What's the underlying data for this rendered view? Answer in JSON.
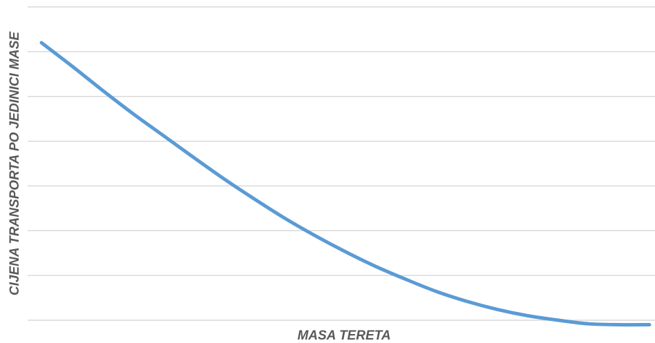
{
  "chart_data": {
    "type": "line",
    "title": "",
    "xlabel": "MASA TERETA",
    "ylabel": "CIJENA TRANSPORTA PO JEDINICI MASE",
    "x": [
      0,
      1,
      2,
      3,
      4,
      5,
      6,
      7,
      8,
      9,
      10,
      11,
      12,
      13,
      14,
      15,
      16,
      17,
      18,
      19,
      20
    ],
    "ylim": [
      0,
      7
    ],
    "gridlines": [
      0,
      1,
      2,
      3,
      4,
      5,
      6,
      7
    ],
    "grid": true,
    "series": [
      {
        "values": [
          6.2,
          5.68,
          5.14,
          4.62,
          4.13,
          3.64,
          3.16,
          2.71,
          2.28,
          1.89,
          1.53,
          1.2,
          0.91,
          0.64,
          0.42,
          0.24,
          0.1,
          0.0,
          -0.08,
          -0.1,
          -0.1
        ]
      }
    ],
    "colors": {
      "line": "#5b9bd5",
      "grid": "#d9d9d9",
      "text": "#595959"
    }
  }
}
